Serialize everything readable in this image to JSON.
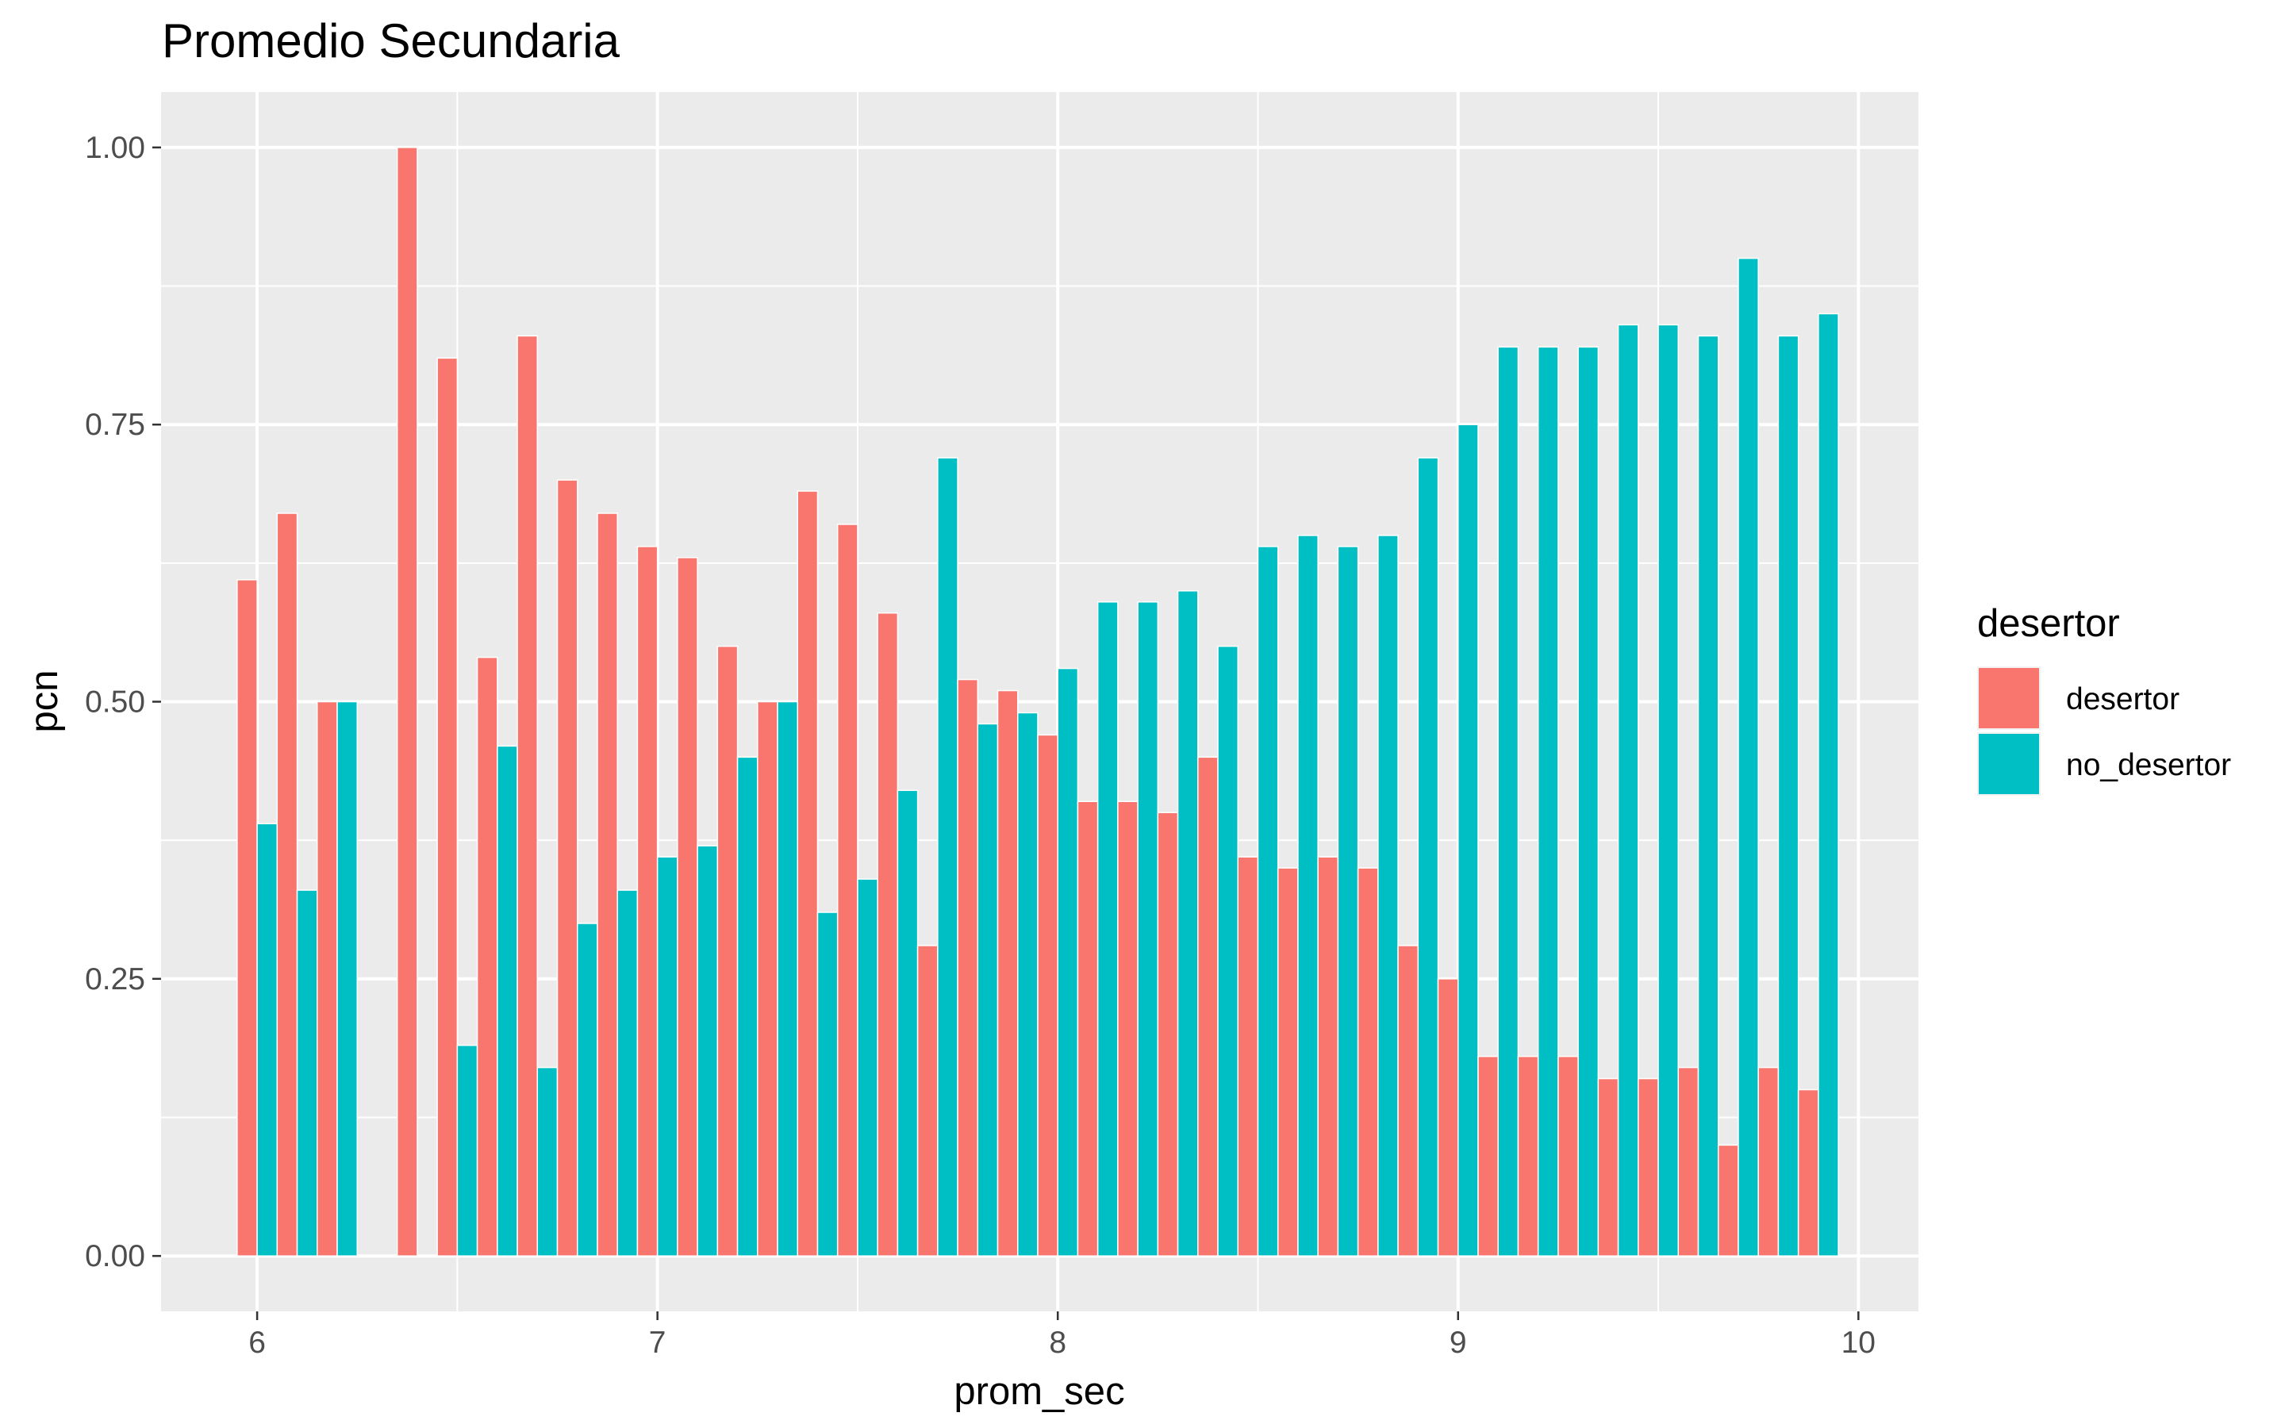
{
  "chart_data": {
    "type": "bar",
    "title": "Promedio Secundaria",
    "xlabel": "prom_sec",
    "ylabel": "pcn",
    "xlim": [
      5.76,
      10.15
    ],
    "ylim": [
      -0.05,
      1.05
    ],
    "x_ticks": [
      {
        "value": 6,
        "label": "6"
      },
      {
        "value": 7,
        "label": "7"
      },
      {
        "value": 8,
        "label": "8"
      },
      {
        "value": 9,
        "label": "9"
      },
      {
        "value": 10,
        "label": "10"
      }
    ],
    "y_ticks": [
      {
        "value": 0,
        "label": "0.00"
      },
      {
        "value": 0.25,
        "label": "0.25"
      },
      {
        "value": 0.5,
        "label": "0.50"
      },
      {
        "value": 0.75,
        "label": "0.75"
      },
      {
        "value": 1,
        "label": "1.00"
      }
    ],
    "grid": true,
    "legend_position": "right",
    "legend_title": "desertor",
    "bar_width": 0.1,
    "x": [
      6.0,
      6.1,
      6.2,
      6.4,
      6.5,
      6.6,
      6.7,
      6.8,
      6.9,
      7.0,
      7.1,
      7.2,
      7.3,
      7.4,
      7.5,
      7.6,
      7.7,
      7.8,
      7.9,
      8.0,
      8.1,
      8.2,
      8.3,
      8.4,
      8.5,
      8.6,
      8.7,
      8.8,
      8.9,
      9.0,
      9.1,
      9.2,
      9.3,
      9.4,
      9.5,
      9.6,
      9.7,
      9.8,
      9.9
    ],
    "series": [
      {
        "name": "desertor",
        "color": "#F8766D",
        "values": [
          0.61,
          0.67,
          0.5,
          1.0,
          0.81,
          0.54,
          0.83,
          0.7,
          0.67,
          0.64,
          0.63,
          0.55,
          0.5,
          0.69,
          0.66,
          0.58,
          0.28,
          0.52,
          0.51,
          0.47,
          0.41,
          0.41,
          0.4,
          0.45,
          0.36,
          0.35,
          0.36,
          0.35,
          0.28,
          0.25,
          0.18,
          0.18,
          0.18,
          0.16,
          0.16,
          0.17,
          0.1,
          0.17,
          0.15
        ]
      },
      {
        "name": "no_desertor",
        "color": "#00BFC4",
        "values": [
          0.39,
          0.33,
          0.5,
          0.0,
          0.19,
          0.46,
          0.17,
          0.3,
          0.33,
          0.36,
          0.37,
          0.45,
          0.5,
          0.31,
          0.34,
          0.42,
          0.72,
          0.48,
          0.49,
          0.53,
          0.59,
          0.59,
          0.6,
          0.55,
          0.64,
          0.65,
          0.64,
          0.65,
          0.72,
          0.75,
          0.82,
          0.82,
          0.82,
          0.84,
          0.84,
          0.83,
          0.9,
          0.83,
          0.85
        ]
      }
    ]
  }
}
